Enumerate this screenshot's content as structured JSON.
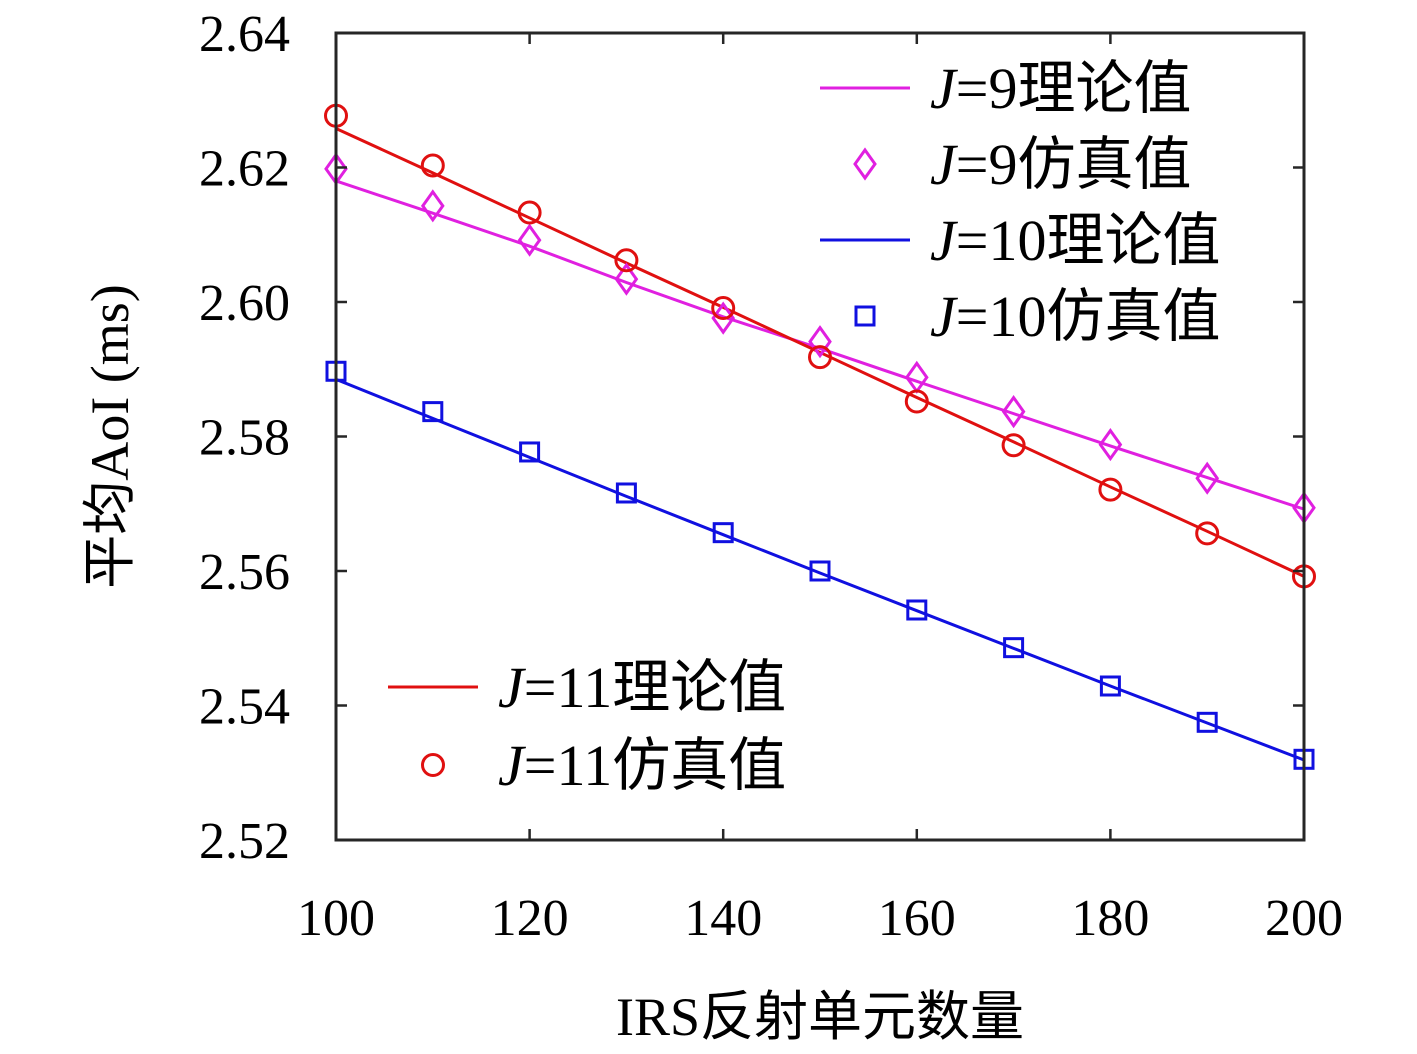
{
  "chart_data": {
    "type": "line",
    "xlabel": "IRS反射单元数量",
    "ylabel": "平均AoI (ms)",
    "xlim": [
      100,
      200
    ],
    "ylim": [
      2.52,
      2.64
    ],
    "x_ticks": [
      100,
      120,
      140,
      160,
      180,
      200
    ],
    "x_tick_labels": [
      "100",
      "120",
      "140",
      "160",
      "180",
      "200"
    ],
    "y_ticks": [
      2.52,
      2.54,
      2.56,
      2.58,
      2.6,
      2.62,
      2.64
    ],
    "y_tick_labels": [
      "2.52",
      "2.54",
      "2.56",
      "2.58",
      "2.60",
      "2.62",
      "2.64"
    ],
    "grid": false,
    "x": [
      100,
      110,
      120,
      130,
      140,
      150,
      160,
      170,
      180,
      190,
      200
    ],
    "series": [
      {
        "name": "J=9理论值",
        "style": "line",
        "color": "#e020e0",
        "values": [
          2.618,
          2.6132,
          2.6083,
          2.6029,
          2.5978,
          2.5931,
          2.5882,
          2.5834,
          2.5786,
          2.5739,
          2.5692
        ]
      },
      {
        "name": "J=9仿真值",
        "style": "marker",
        "marker": "diamond",
        "color": "#e020e0",
        "values": [
          2.6198,
          2.6143,
          2.6092,
          2.6034,
          2.5976,
          2.5941,
          2.5888,
          2.5837,
          2.5788,
          2.5738,
          2.5694
        ]
      },
      {
        "name": "J=10理论值",
        "style": "line",
        "color": "#1010e0",
        "values": [
          2.5885,
          2.5827,
          2.5769,
          2.5711,
          2.5654,
          2.5597,
          2.5541,
          2.5485,
          2.5429,
          2.5374,
          2.5319
        ]
      },
      {
        "name": "J=10仿真值",
        "style": "marker",
        "marker": "square",
        "color": "#1010e0",
        "values": [
          2.5897,
          2.5837,
          2.5777,
          2.5716,
          2.5657,
          2.56,
          2.5542,
          2.5486,
          2.5429,
          2.5375,
          2.532
        ]
      },
      {
        "name": "J=11理论值",
        "style": "line",
        "color": "#e01010",
        "values": [
          2.6258,
          2.6192,
          2.6125,
          2.6058,
          2.5992,
          2.5925,
          2.5858,
          2.5792,
          2.5725,
          2.5659,
          2.5592
        ]
      },
      {
        "name": "J=11仿真值",
        "style": "marker",
        "marker": "circle",
        "color": "#e01010",
        "values": [
          2.6277,
          2.6203,
          2.6133,
          2.6062,
          2.5991,
          2.5918,
          2.5852,
          2.5787,
          2.5721,
          2.5656,
          2.5592
        ]
      }
    ],
    "legends": [
      {
        "placement": "top-right",
        "entries": [
          {
            "prefix": "J",
            "suffix": "=9理论值",
            "series": 0
          },
          {
            "prefix": "J",
            "suffix": "=9仿真值",
            "series": 1
          },
          {
            "prefix": "J",
            "suffix": "=10理论值",
            "series": 2
          },
          {
            "prefix": "J",
            "suffix": "=10仿真值",
            "series": 3
          }
        ]
      },
      {
        "placement": "bottom-left",
        "entries": [
          {
            "prefix": "J",
            "suffix": "=11理论值",
            "series": 4
          },
          {
            "prefix": "J",
            "suffix": "=11仿真值",
            "series": 5
          }
        ]
      }
    ]
  }
}
